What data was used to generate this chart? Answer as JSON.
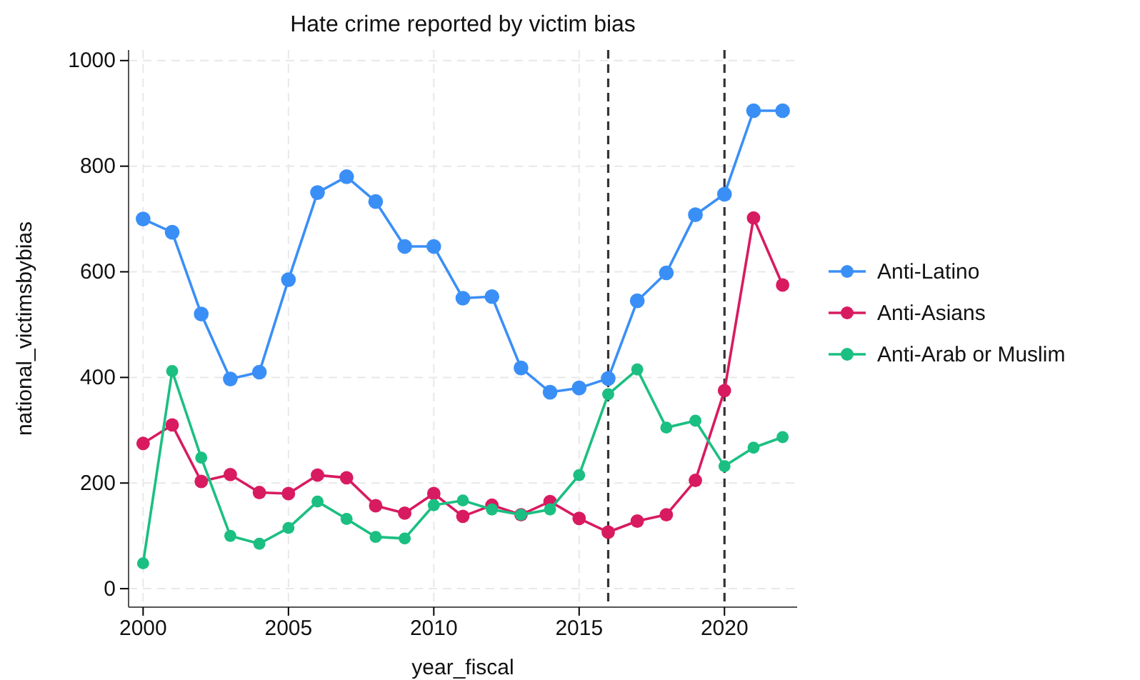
{
  "chart_data": {
    "type": "line",
    "title": "Hate crime reported by victim bias",
    "xlabel": "year_fiscal",
    "ylabel": "national_victimsbybias",
    "x": [
      2000,
      2001,
      2002,
      2003,
      2004,
      2005,
      2006,
      2007,
      2008,
      2009,
      2010,
      2011,
      2012,
      2013,
      2014,
      2015,
      2016,
      2017,
      2018,
      2019,
      2020,
      2021,
      2022
    ],
    "series": [
      {
        "name": "Anti-Latino",
        "color": "#3a8ff7",
        "values": [
          700,
          675,
          520,
          397,
          410,
          585,
          750,
          780,
          733,
          648,
          648,
          550,
          553,
          418,
          372,
          380,
          398,
          545,
          598,
          708,
          747,
          905,
          905
        ]
      },
      {
        "name": "Anti-Asians",
        "color": "#d81b60",
        "values": [
          275,
          310,
          203,
          216,
          182,
          180,
          215,
          210,
          157,
          143,
          180,
          137,
          158,
          140,
          165,
          133,
          107,
          128,
          140,
          205,
          375,
          702,
          575
        ]
      },
      {
        "name": "Anti-Arab or Muslim",
        "color": "#1bbf82",
        "values": [
          48,
          412,
          248,
          100,
          85,
          115,
          165,
          132,
          98,
          95,
          158,
          167,
          150,
          140,
          150,
          215,
          368,
          415,
          305,
          318,
          232,
          267,
          287
        ]
      }
    ],
    "xlim": [
      1999.5,
      2022.5
    ],
    "xticks": [
      2000,
      2005,
      2010,
      2015,
      2020
    ],
    "ylim": [
      -35,
      1020
    ],
    "yticks": [
      0,
      200,
      400,
      600,
      800,
      1000
    ],
    "grid": true,
    "legend": "right",
    "marker": "circle",
    "line_style": "solid",
    "ref_lines": [
      {
        "axis": "x",
        "value": 2016,
        "color": "#333333",
        "line_style": "dashed"
      },
      {
        "axis": "x",
        "value": 2020,
        "color": "#333333",
        "line_style": "dashed"
      }
    ]
  }
}
